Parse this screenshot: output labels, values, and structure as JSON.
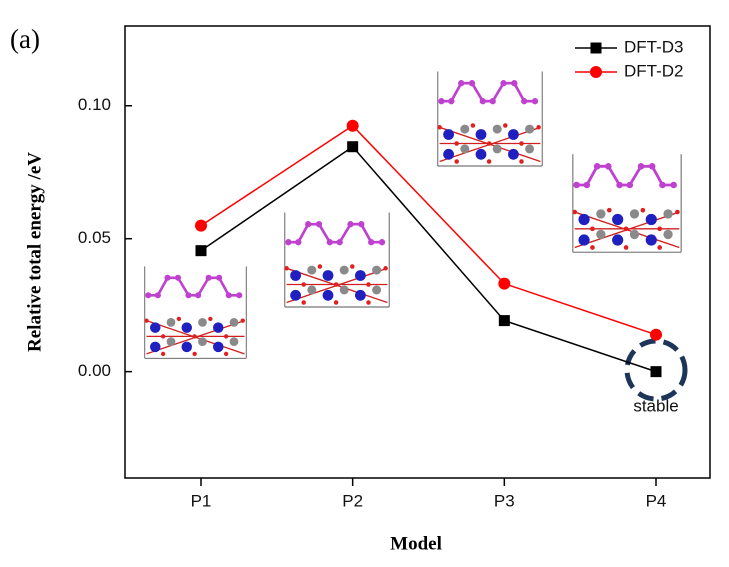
{
  "chart_data": {
    "type": "line",
    "title_label": "(a)",
    "x_label": "Model",
    "y_label": "Relative total energy /eV",
    "categories": [
      "P1",
      "P2",
      "P3",
      "P4"
    ],
    "series": [
      {
        "name": "DFT-D3",
        "color": "#000000",
        "marker": "square",
        "values": [
          0.0455,
          0.0846,
          0.0192,
          0.0
        ]
      },
      {
        "name": "DFT-D2",
        "color": "#ff0000",
        "marker": "circle",
        "values": [
          0.0549,
          0.0925,
          0.0331,
          0.0139
        ]
      }
    ],
    "ylim": [
      -0.04,
      0.13
    ],
    "yticks": [
      {
        "value": 0,
        "label": "0.00"
      },
      0.05,
      {
        "value": 0.1,
        "label": "0.10"
      }
    ],
    "legend": "upper right",
    "annotation": "stable"
  }
}
